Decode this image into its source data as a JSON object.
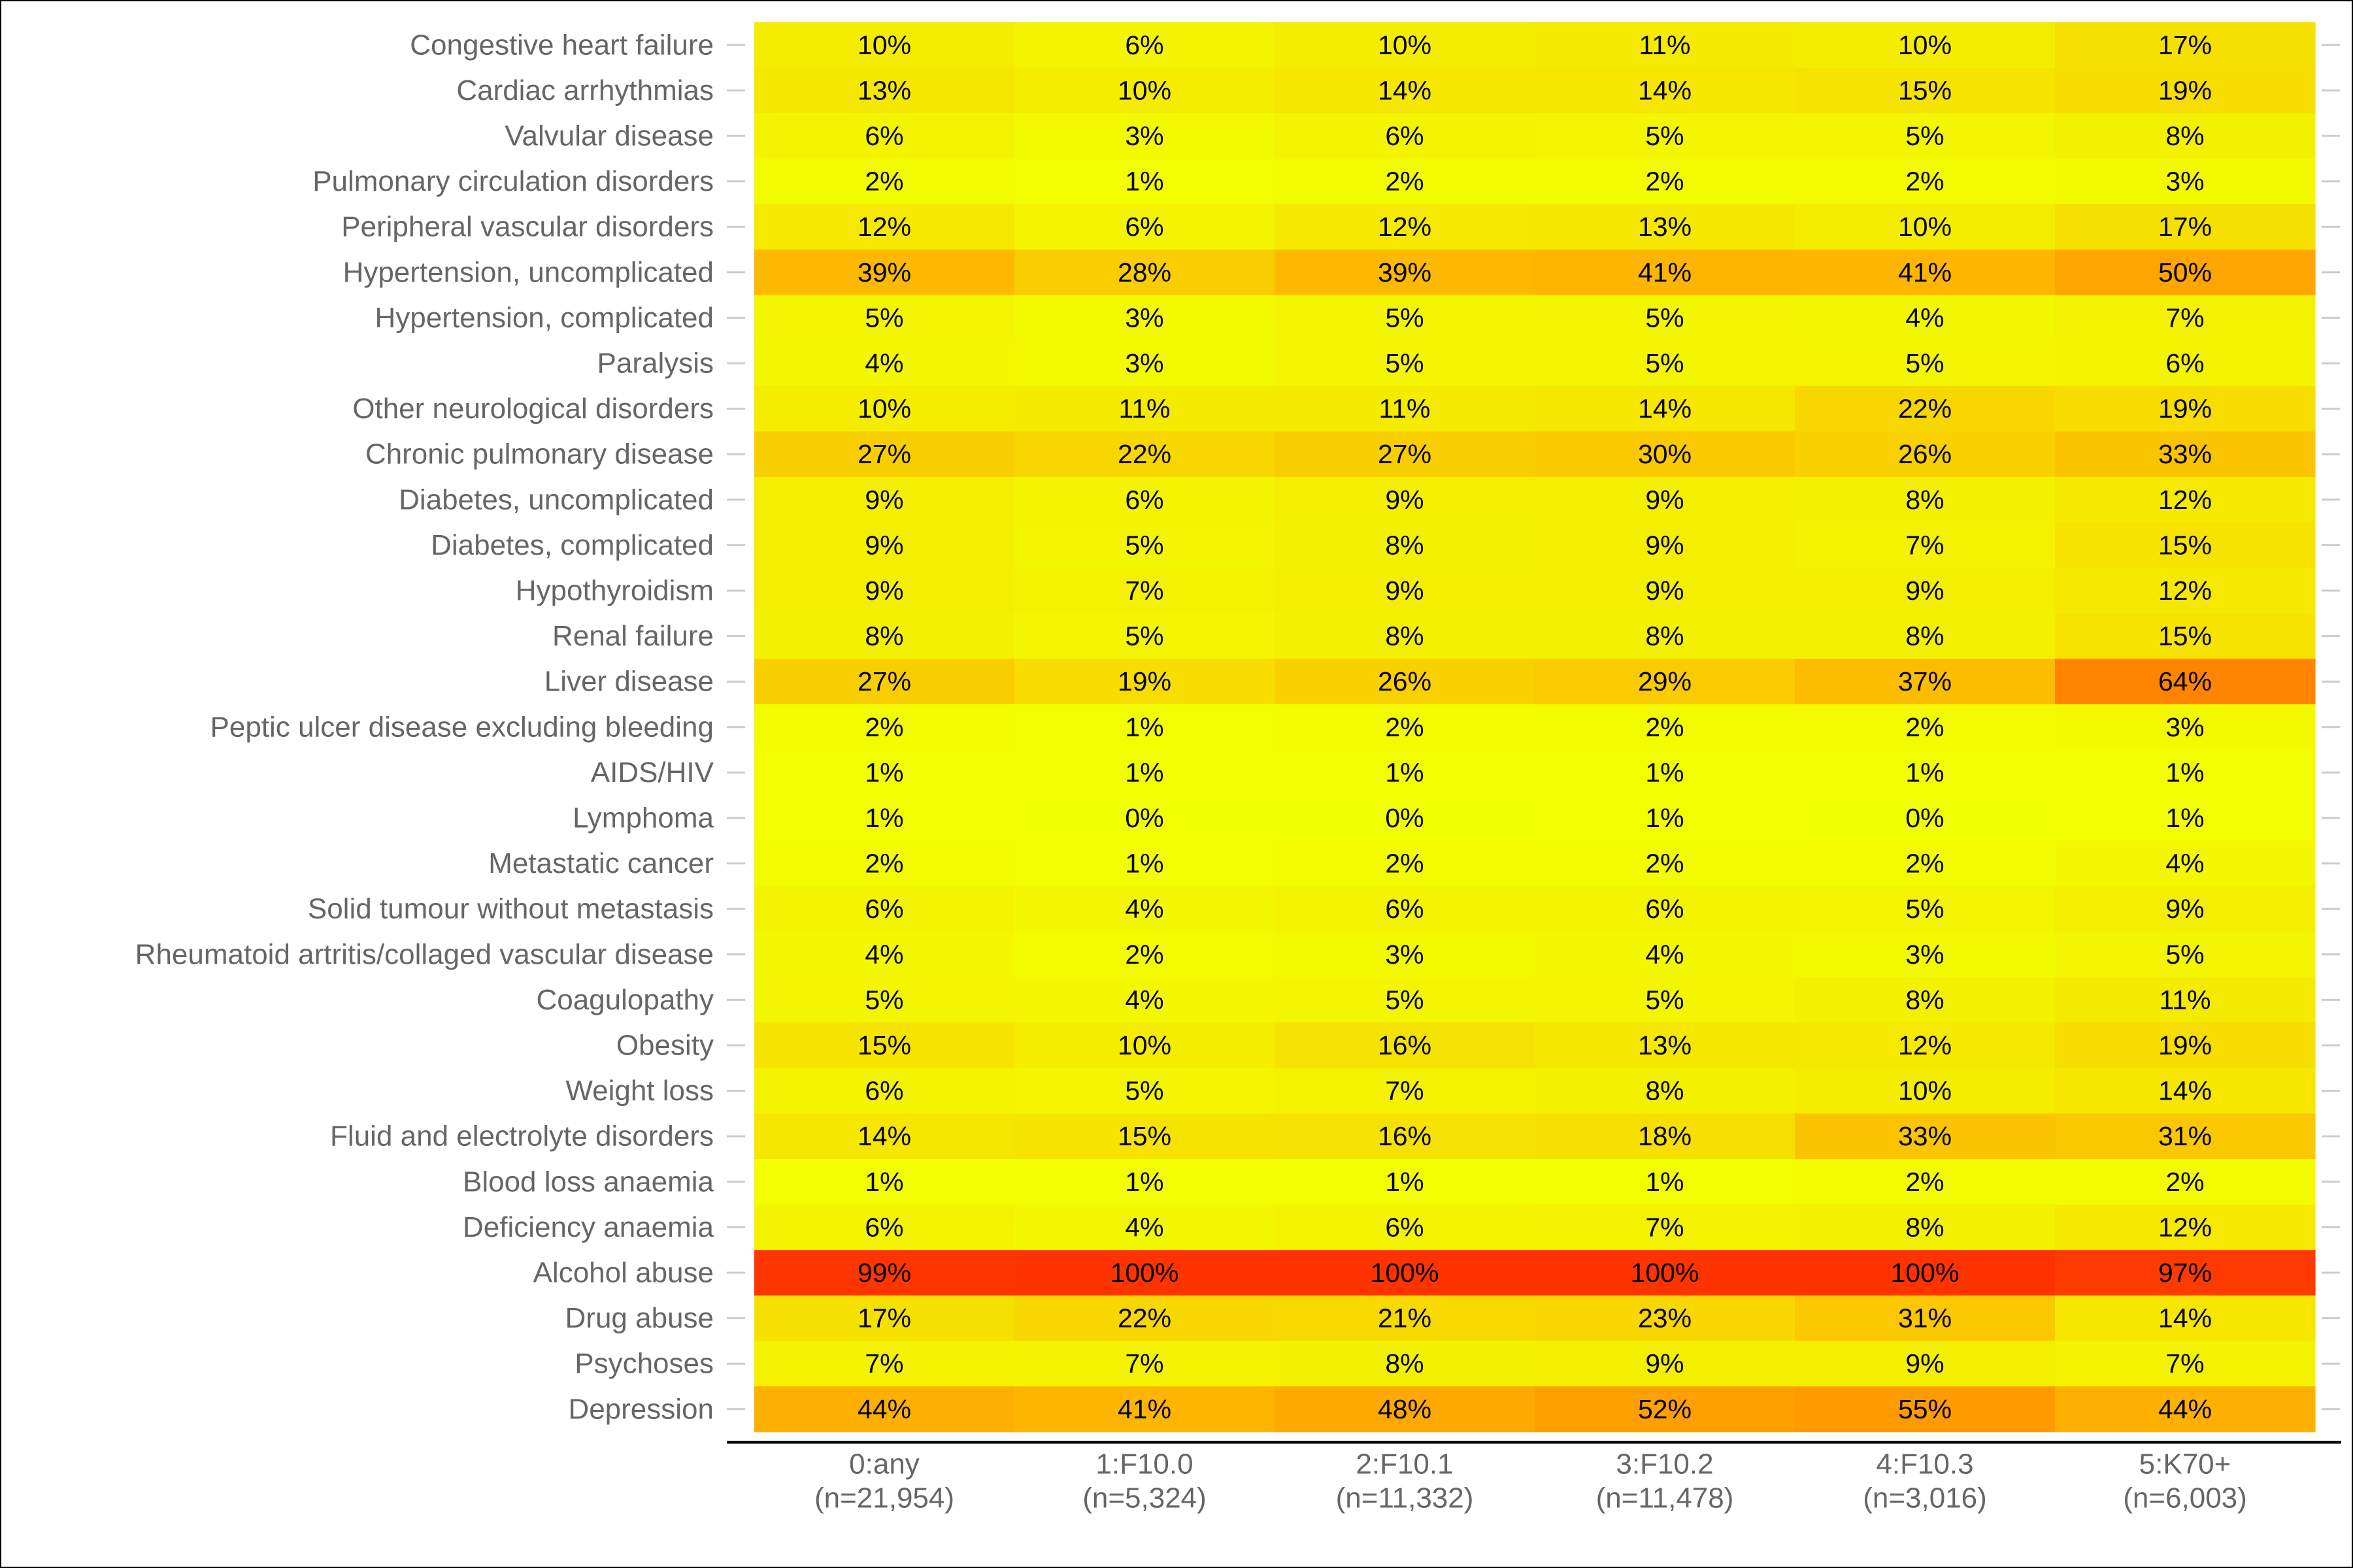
{
  "chart_data": {
    "type": "heatmap",
    "title": "",
    "xlabel": "",
    "ylabel": "",
    "value_format": "percent",
    "color_scale": {
      "low": "#f2ff00",
      "mid": "#ffa500",
      "high": "#ff3300",
      "range": [
        0,
        100
      ]
    },
    "columns": [
      {
        "name": "0:any",
        "n": "(n=21,954)"
      },
      {
        "name": "1:F10.0",
        "n": "(n=5,324)"
      },
      {
        "name": "2:F10.1",
        "n": "(n=11,332)"
      },
      {
        "name": "3:F10.2",
        "n": "(n=11,478)"
      },
      {
        "name": "4:F10.3",
        "n": "(n=3,016)"
      },
      {
        "name": "5:K70+",
        "n": "(n=6,003)"
      }
    ],
    "rows": [
      {
        "label": "Congestive heart failure",
        "values": [
          10,
          6,
          10,
          11,
          10,
          17
        ]
      },
      {
        "label": "Cardiac arrhythmias",
        "values": [
          13,
          10,
          14,
          14,
          15,
          19
        ]
      },
      {
        "label": "Valvular disease",
        "values": [
          6,
          3,
          6,
          5,
          5,
          8
        ]
      },
      {
        "label": "Pulmonary circulation disorders",
        "values": [
          2,
          1,
          2,
          2,
          2,
          3
        ]
      },
      {
        "label": "Peripheral vascular disorders",
        "values": [
          12,
          6,
          12,
          13,
          10,
          17
        ]
      },
      {
        "label": "Hypertension, uncomplicated",
        "values": [
          39,
          28,
          39,
          41,
          41,
          50
        ]
      },
      {
        "label": "Hypertension, complicated",
        "values": [
          5,
          3,
          5,
          5,
          4,
          7
        ]
      },
      {
        "label": "Paralysis",
        "values": [
          4,
          3,
          5,
          5,
          5,
          6
        ]
      },
      {
        "label": "Other neurological disorders",
        "values": [
          10,
          11,
          11,
          14,
          22,
          19
        ]
      },
      {
        "label": "Chronic pulmonary disease",
        "values": [
          27,
          22,
          27,
          30,
          26,
          33
        ]
      },
      {
        "label": "Diabetes, uncomplicated",
        "values": [
          9,
          6,
          9,
          9,
          8,
          12
        ]
      },
      {
        "label": "Diabetes, complicated",
        "values": [
          9,
          5,
          8,
          9,
          7,
          15
        ]
      },
      {
        "label": "Hypothyroidism",
        "values": [
          9,
          7,
          9,
          9,
          9,
          12
        ]
      },
      {
        "label": "Renal failure",
        "values": [
          8,
          5,
          8,
          8,
          8,
          15
        ]
      },
      {
        "label": "Liver disease",
        "values": [
          27,
          19,
          26,
          29,
          37,
          64
        ]
      },
      {
        "label": "Peptic ulcer disease excluding bleeding",
        "values": [
          2,
          1,
          2,
          2,
          2,
          3
        ]
      },
      {
        "label": "AIDS/HIV",
        "values": [
          1,
          1,
          1,
          1,
          1,
          1
        ]
      },
      {
        "label": "Lymphoma",
        "values": [
          1,
          0,
          0,
          1,
          0,
          1
        ]
      },
      {
        "label": "Metastatic cancer",
        "values": [
          2,
          1,
          2,
          2,
          2,
          4
        ]
      },
      {
        "label": "Solid tumour without metastasis",
        "values": [
          6,
          4,
          6,
          6,
          5,
          9
        ]
      },
      {
        "label": "Rheumatoid artritis/collaged vascular disease",
        "values": [
          4,
          2,
          3,
          4,
          3,
          5
        ]
      },
      {
        "label": "Coagulopathy",
        "values": [
          5,
          4,
          5,
          5,
          8,
          11
        ]
      },
      {
        "label": "Obesity",
        "values": [
          15,
          10,
          16,
          13,
          12,
          19
        ]
      },
      {
        "label": "Weight loss",
        "values": [
          6,
          5,
          7,
          8,
          10,
          14
        ]
      },
      {
        "label": "Fluid and electrolyte disorders",
        "values": [
          14,
          15,
          16,
          18,
          33,
          31
        ]
      },
      {
        "label": "Blood loss anaemia",
        "values": [
          1,
          1,
          1,
          1,
          2,
          2
        ]
      },
      {
        "label": "Deficiency anaemia",
        "values": [
          6,
          4,
          6,
          7,
          8,
          12
        ]
      },
      {
        "label": "Alcohol abuse",
        "values": [
          99,
          100,
          100,
          100,
          100,
          97
        ]
      },
      {
        "label": "Drug abuse",
        "values": [
          17,
          22,
          21,
          23,
          31,
          14
        ]
      },
      {
        "label": "Psychoses",
        "values": [
          7,
          7,
          8,
          9,
          9,
          7
        ]
      },
      {
        "label": "Depression",
        "values": [
          44,
          41,
          48,
          52,
          55,
          44
        ]
      }
    ]
  }
}
